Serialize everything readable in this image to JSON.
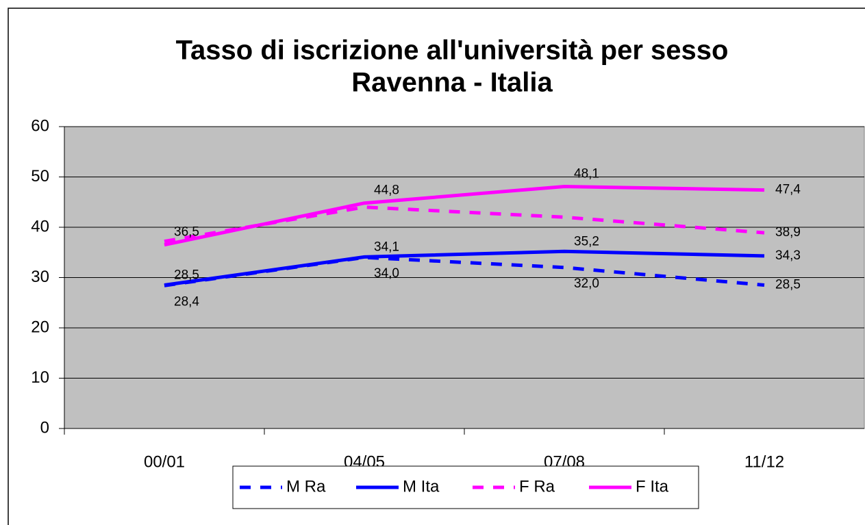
{
  "chart_data": {
    "type": "line",
    "title": "Tasso di iscrizione all'università per sesso",
    "subtitle": "Ravenna - Italia",
    "categories": [
      "00/01",
      "04/05",
      "07/08",
      "11/12"
    ],
    "series": [
      {
        "name": "M Ra",
        "color": "#0000ff",
        "dashed": true,
        "values": [
          28.4,
          34.0,
          32.0,
          28.5
        ],
        "value_labels": [
          "28,4",
          "34,0",
          "32,0",
          "28,5"
        ]
      },
      {
        "name": "M Ita",
        "color": "#0000ff",
        "dashed": false,
        "values": [
          28.5,
          34.1,
          35.2,
          34.3
        ],
        "value_labels": [
          "28,5",
          "34,1",
          "35,2",
          "34,3"
        ]
      },
      {
        "name": "F Ra",
        "color": "#ff00ff",
        "dashed": true,
        "values": [
          37.2,
          44.0,
          42.0,
          38.9
        ],
        "value_labels": [
          null,
          null,
          null,
          "38,9"
        ]
      },
      {
        "name": "F Ita",
        "color": "#ff00ff",
        "dashed": false,
        "values": [
          36.5,
          44.8,
          48.1,
          47.4
        ],
        "value_labels": [
          "36,5",
          "44,8",
          "48,1",
          "47,4"
        ]
      }
    ],
    "ylim": [
      0,
      60
    ],
    "yticks": [
      0,
      10,
      20,
      30,
      40,
      50,
      60
    ],
    "grid": true,
    "plot_background": "#c0c0c0",
    "legend": "bottom"
  }
}
